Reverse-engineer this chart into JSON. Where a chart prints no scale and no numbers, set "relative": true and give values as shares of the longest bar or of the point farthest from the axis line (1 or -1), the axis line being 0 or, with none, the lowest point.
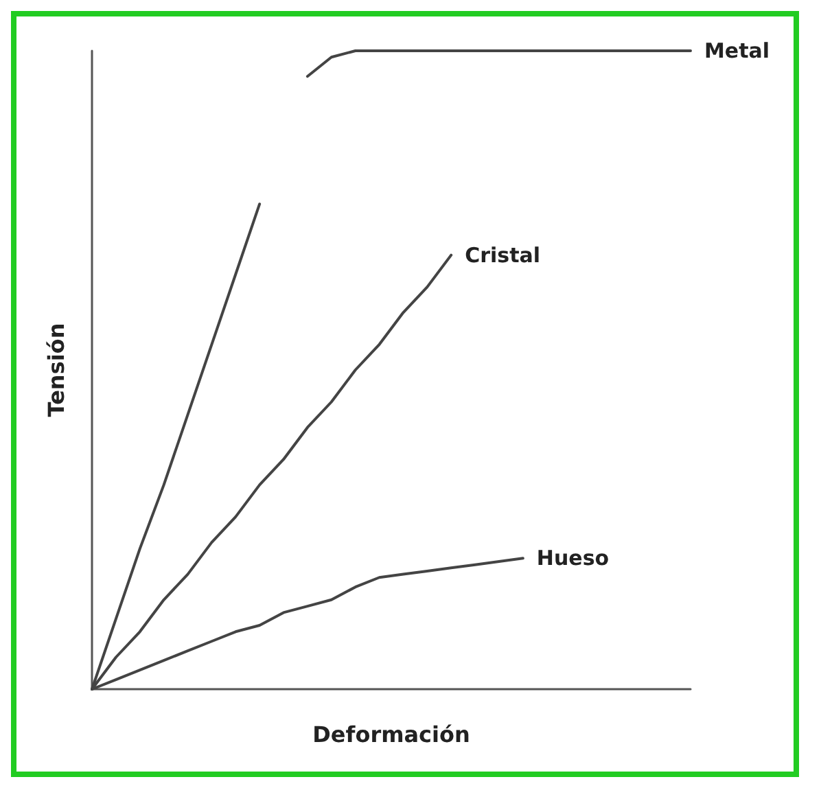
{
  "chart_data": {
    "type": "line",
    "relative": true,
    "xlabel": "Deformación",
    "ylabel": "Tensión",
    "grid": false,
    "legend": false,
    "marker": "none",
    "line_style": "solid",
    "categories": [
      null,
      null,
      null,
      null,
      null,
      null,
      null,
      null,
      null,
      null,
      null,
      null,
      null,
      null,
      null,
      null,
      null,
      null,
      null,
      null,
      null,
      null,
      null,
      null,
      null,
      null
    ],
    "series": [
      {
        "name": "Metal",
        "color": "#444444",
        "values": [
          0,
          0.11,
          0.22,
          0.32,
          0.43,
          0.54,
          0.65,
          0.76,
          null,
          0.96,
          0.99,
          1,
          1,
          1,
          1,
          1,
          1,
          1,
          1,
          1,
          1,
          1,
          1,
          1,
          1,
          1
        ]
      },
      {
        "name": "Cristal",
        "color": "#444444",
        "values": [
          0,
          0.05,
          0.09,
          0.14,
          0.18,
          0.23,
          0.27,
          0.32,
          0.36,
          0.41,
          0.45,
          0.5,
          0.54,
          0.59,
          0.63,
          0.68,
          null,
          null,
          null,
          null,
          null,
          null,
          null,
          null,
          null,
          null
        ]
      },
      {
        "name": "Hueso",
        "color": "#444444",
        "values": [
          0,
          0.015,
          0.03,
          0.045,
          0.06,
          0.075,
          0.09,
          0.1,
          0.12,
          0.13,
          0.14,
          0.16,
          0.175,
          0.18,
          0.185,
          0.19,
          0.195,
          0.2,
          0.205,
          null,
          null,
          null,
          null,
          null,
          null,
          null
        ]
      }
    ]
  }
}
